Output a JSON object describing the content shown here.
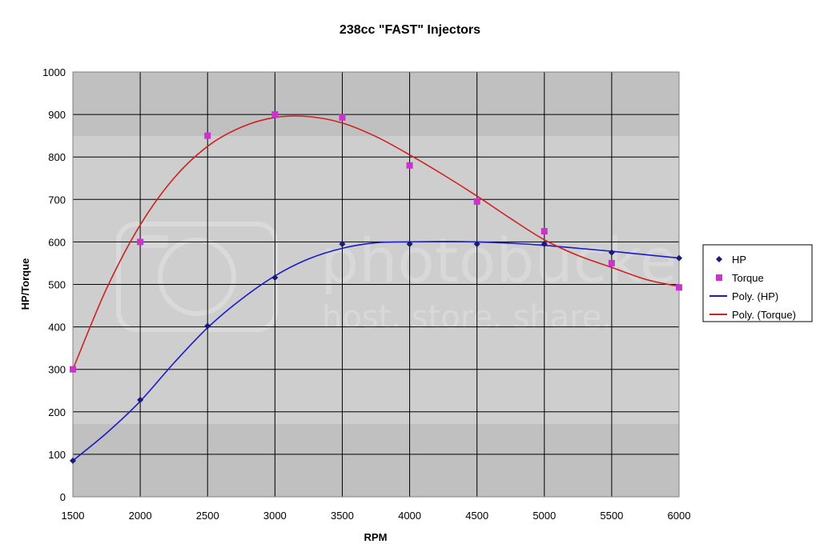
{
  "chart_data": {
    "type": "scatter",
    "title": "238cc \"FAST\" Injectors",
    "xlabel": "RPM",
    "ylabel": "HP/Torque",
    "xlim": [
      1500,
      6000
    ],
    "ylim": [
      0,
      1000
    ],
    "x_ticks": [
      1500,
      2000,
      2500,
      3000,
      3500,
      4000,
      4500,
      5000,
      5500,
      6000
    ],
    "y_ticks": [
      0,
      100,
      200,
      300,
      400,
      500,
      600,
      700,
      800,
      900,
      1000
    ],
    "grid": true,
    "legend_position": "right",
    "series": [
      {
        "name": "HP",
        "kind": "markers",
        "marker": "diamond",
        "color": "#1a1a7a",
        "x": [
          1500,
          2000,
          2500,
          3000,
          3500,
          4000,
          4500,
          5000,
          5500,
          6000
        ],
        "y": [
          85,
          228,
          402,
          516,
          595,
          595,
          595,
          595,
          575,
          562
        ]
      },
      {
        "name": "Torque",
        "kind": "markers",
        "marker": "square",
        "color": "#cc33cc",
        "x": [
          1500,
          2000,
          2500,
          3000,
          3500,
          4000,
          4500,
          5000,
          5500,
          6000
        ],
        "y": [
          300,
          600,
          850,
          900,
          893,
          780,
          695,
          625,
          550,
          493
        ]
      },
      {
        "name": "Poly. (HP)",
        "kind": "trendline",
        "color": "#1a1acc",
        "x": [
          1500,
          1750,
          2000,
          2250,
          2500,
          2750,
          3000,
          3250,
          3500,
          3750,
          4000,
          4250,
          4500,
          4750,
          5000,
          5250,
          5500,
          5750,
          6000
        ],
        "y": [
          85,
          150,
          225,
          315,
          398,
          465,
          520,
          560,
          585,
          598,
          600,
          601,
          600,
          597,
          592,
          585,
          578,
          570,
          562
        ]
      },
      {
        "name": "Poly. (Torque)",
        "kind": "trendline",
        "color": "#cc2222",
        "x": [
          1500,
          1750,
          2000,
          2250,
          2500,
          2750,
          3000,
          3250,
          3500,
          3750,
          4000,
          4250,
          4500,
          4750,
          5000,
          5250,
          5500,
          5750,
          6000
        ],
        "y": [
          300,
          490,
          640,
          750,
          825,
          870,
          893,
          895,
          880,
          848,
          805,
          758,
          708,
          655,
          605,
          568,
          540,
          512,
          495
        ]
      }
    ]
  },
  "watermark": {
    "text_top": "photobucket",
    "text_bottom": "host. store. share."
  }
}
